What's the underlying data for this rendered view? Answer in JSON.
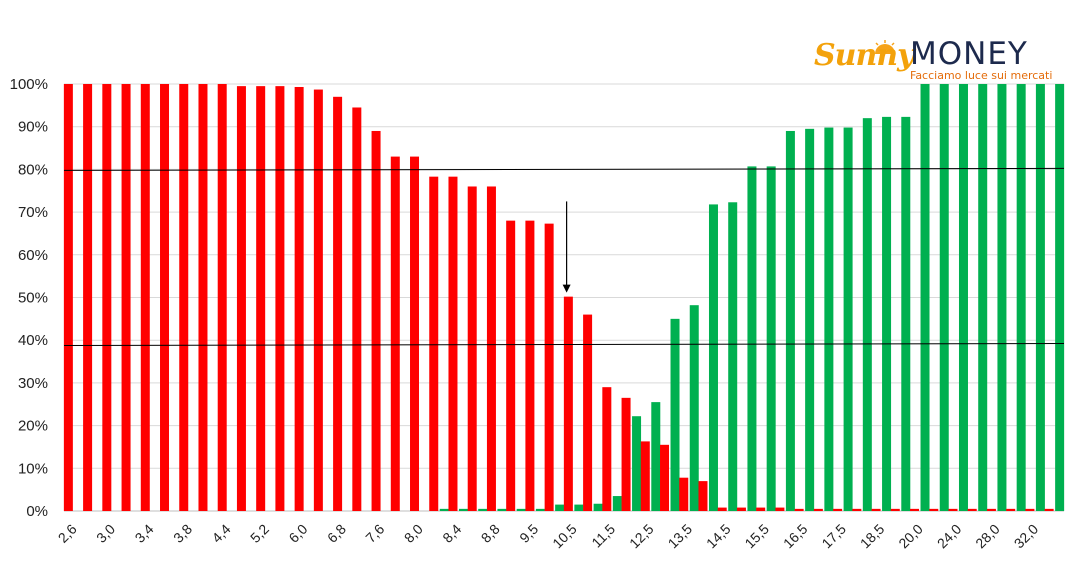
{
  "logo": {
    "brand_script": "Sunny",
    "brand_word": "MONEY",
    "tagline": "Facciamo luce sui mercati"
  },
  "chart_data": {
    "type": "bar",
    "title": "",
    "xlabel": "",
    "ylabel": "",
    "ylim": [
      0,
      100
    ],
    "y_ticks": [
      "0%",
      "10%",
      "20%",
      "30%",
      "40%",
      "50%",
      "60%",
      "70%",
      "80%",
      "90%",
      "100%"
    ],
    "grid": true,
    "categories": [
      "2,6",
      "2,8",
      "3,0",
      "3,2",
      "3,4",
      "3,6",
      "3,8",
      "4,0",
      "4,4",
      "4,8",
      "5,2",
      "5,6",
      "6,0",
      "6,4",
      "6,8",
      "7,2",
      "7,6",
      "7,8",
      "8,0",
      "8,2",
      "8,4",
      "8,6",
      "8,8",
      "9,0",
      "9,5",
      "10,0",
      "10,5",
      "11,0",
      "11,5",
      "12,0",
      "12,5",
      "13,0",
      "13,5",
      "14,0",
      "14,5",
      "15,0",
      "15,5",
      "16,0",
      "16,5",
      "17,0",
      "17,5",
      "18,0",
      "18,5",
      "19,0",
      "20,0",
      "22,0",
      "24,0",
      "26,0",
      "28,0",
      "30,0",
      "32,0",
      "34,0"
    ],
    "x_tick_labels": [
      "2,6",
      "3,0",
      "3,4",
      "3,8",
      "4,4",
      "5,2",
      "6,0",
      "6,8",
      "7,6",
      "8,0",
      "8,4",
      "8,8",
      "9,5",
      "10,5",
      "11,5",
      "12,5",
      "13,5",
      "14,5",
      "15,5",
      "16,5",
      "17,5",
      "18,5",
      "20,0",
      "24,0",
      "28,0",
      "32,0"
    ],
    "series": [
      {
        "color": "#ff0000",
        "values": [
          100,
          100,
          100,
          100,
          100,
          100,
          100,
          100,
          100,
          99.5,
          99.5,
          99.5,
          99.3,
          98.7,
          97,
          94.5,
          89,
          83,
          83,
          78.3,
          78.3,
          76,
          76,
          68,
          68,
          67.3,
          50.2,
          46,
          29,
          26.5,
          16.3,
          15.5,
          7.8,
          7,
          0.8,
          0.8,
          0.8,
          0.8,
          0.5,
          0.5,
          0.5,
          0.5,
          0.5,
          0.5,
          0.5,
          0.5,
          0.5,
          0.5,
          0.5,
          0.5,
          0.5,
          0.5
        ]
      },
      {
        "color": "#00b050",
        "values": [
          0,
          0,
          0,
          0,
          0,
          0,
          0,
          0,
          0,
          0,
          0,
          0,
          0,
          0,
          0,
          0,
          0,
          0,
          0,
          0.5,
          0.5,
          0.5,
          0.5,
          0.5,
          0.5,
          1.5,
          1.5,
          1.7,
          3.5,
          22.2,
          25.5,
          45,
          48.2,
          71.8,
          72.3,
          80.7,
          80.7,
          89,
          89.5,
          89.8,
          89.8,
          92,
          92.3,
          92.3,
          100,
          100,
          100,
          100,
          100,
          100,
          100,
          100
        ]
      }
    ],
    "reference_lines": [
      {
        "value": 80,
        "color": "#000000"
      },
      {
        "value": 39,
        "color": "#000000"
      }
    ],
    "annotation": {
      "type": "arrow",
      "category_index": 26
    }
  }
}
